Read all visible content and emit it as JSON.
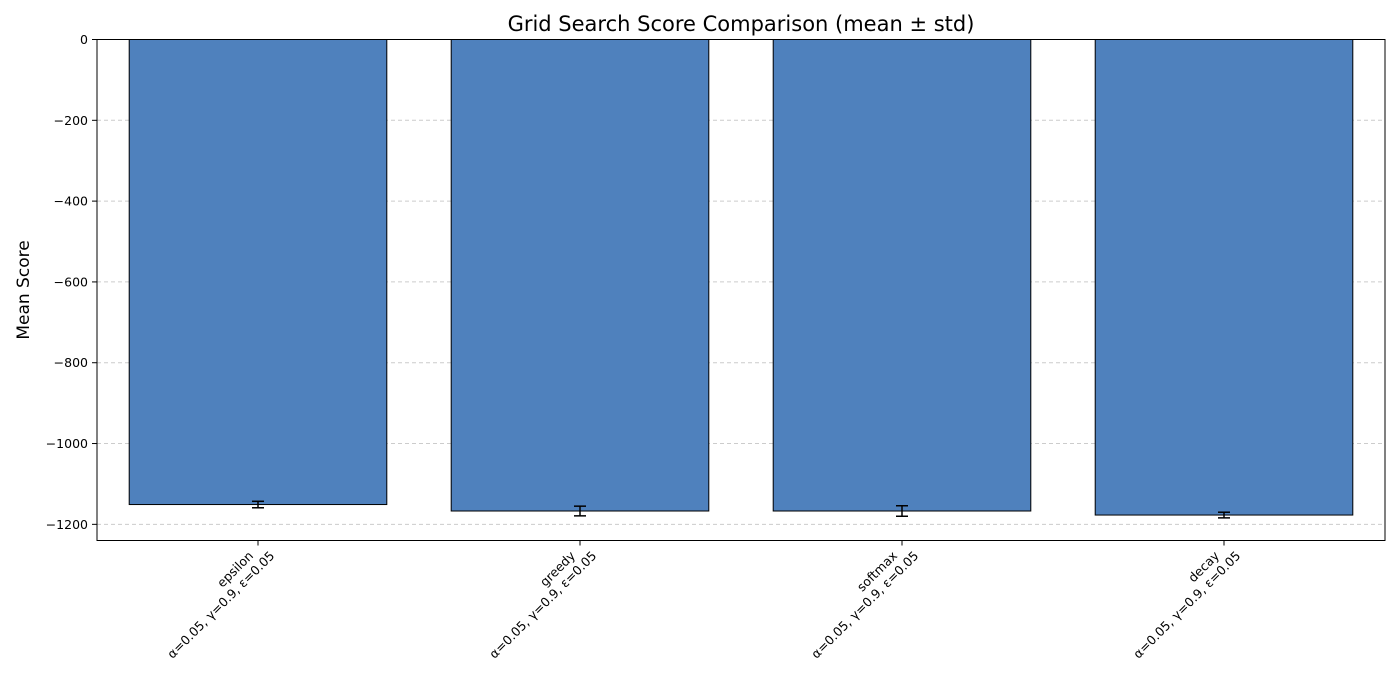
{
  "chart_data": {
    "type": "bar",
    "title": "Grid Search Score Comparison (mean ± std)",
    "xlabel": "",
    "ylabel": "Mean Score",
    "categories": [
      {
        "name": "epsilon",
        "params": "α=0.05, γ=0.9, ε=0.05"
      },
      {
        "name": "greedy",
        "params": "α=0.05, γ=0.9, ε=0.05"
      },
      {
        "name": "softmax",
        "params": "α=0.05, γ=0.9, ε=0.05"
      },
      {
        "name": "decay",
        "params": "α=0.05, γ=0.9, ε=0.05"
      }
    ],
    "values": [
      -1151,
      -1167,
      -1167,
      -1177
    ],
    "errors": [
      8,
      12,
      13,
      7
    ],
    "ylim": [
      -1240,
      0
    ],
    "yticks": [
      0,
      -200,
      -400,
      -600,
      -800,
      -1000,
      -1200
    ],
    "ytick_labels": [
      "0",
      "−200",
      "−400",
      "−600",
      "−800",
      "−1000",
      "−1200"
    ],
    "grid": "y-dashed",
    "bar_color": "#4f81bd",
    "edge_color": "#000000",
    "grid_color": "#cccccc"
  }
}
